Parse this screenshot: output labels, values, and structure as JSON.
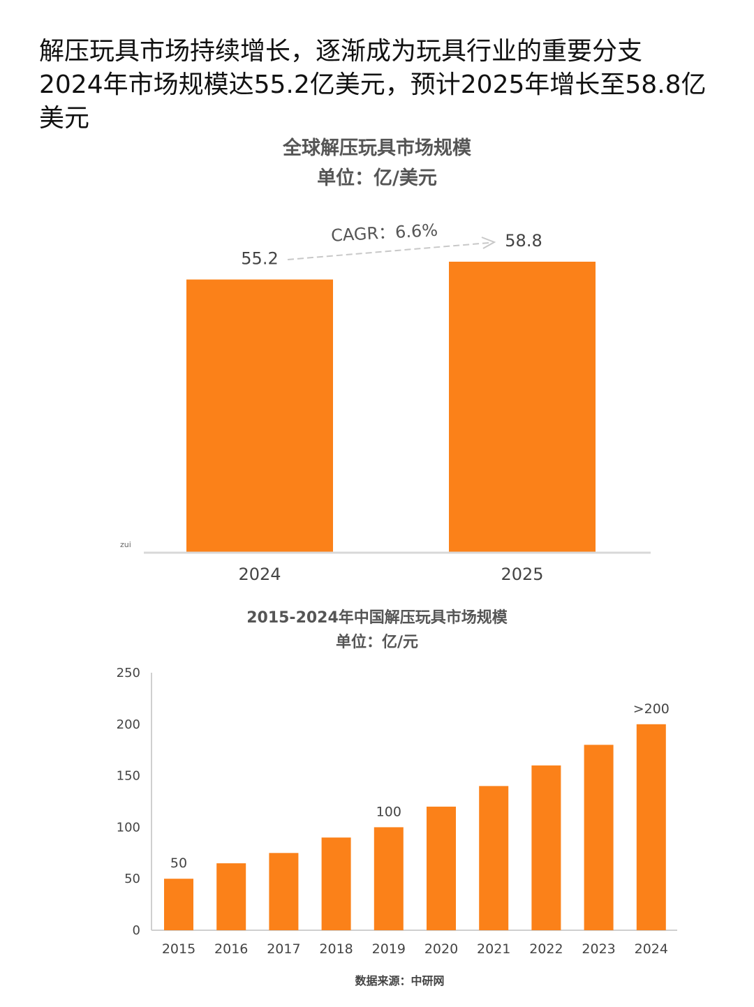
{
  "headline": [
    "解压玩具市场持续增长，逐渐成为玩具行业的重要分支",
    "2024年市场规模达55.2亿美元，预计2025年增长至58.8亿",
    "美元"
  ],
  "source": "数据来源：中研网",
  "colors": {
    "bar": "#fb8119",
    "axis": "#d8d8d8",
    "text": "#444444"
  },
  "chart_data": [
    {
      "type": "bar",
      "title": "全球解压玩具市场规模",
      "subtitle": "单位：亿/美元",
      "categories": [
        "2024",
        "2025"
      ],
      "values": [
        55.2,
        58.8
      ],
      "data_labels": [
        "55.2",
        "58.8"
      ],
      "annotation": "CAGR：6.6%",
      "corner_note": "zui",
      "ylim": [
        0,
        58.8
      ],
      "grid": false
    },
    {
      "type": "bar",
      "title": "2015-2024年中国解压玩具市场规模",
      "subtitle": "单位：亿/元",
      "categories": [
        "2015",
        "2016",
        "2017",
        "2018",
        "2019",
        "2020",
        "2021",
        "2022",
        "2023",
        "2024"
      ],
      "values": [
        50,
        65,
        75,
        90,
        100,
        120,
        140,
        160,
        180,
        200
      ],
      "data_labels": {
        "2015": "50",
        "2019": "100",
        "2024": ">200"
      },
      "yticks": [
        0,
        50,
        100,
        150,
        200,
        250
      ],
      "ylim": [
        0,
        250
      ],
      "grid": false
    }
  ]
}
